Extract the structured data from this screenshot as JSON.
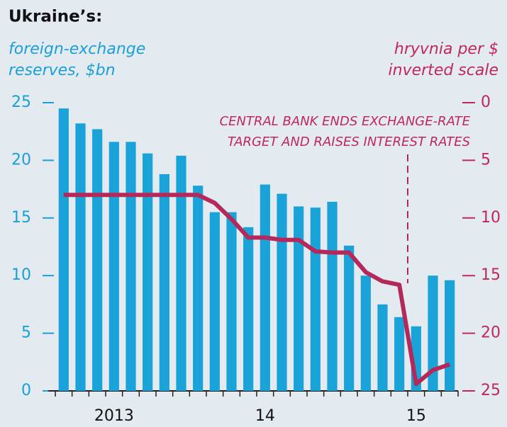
{
  "chart_data": {
    "type": "bar-line",
    "title": "Ukraine’s:",
    "y_label": [
      "foreign-exchange",
      "reserves, $bn"
    ],
    "y2_label": [
      "hryvnia per $",
      "inverted scale"
    ],
    "annotation": [
      "CENTRAL BANK ENDS EXCHANGE-RATE",
      "TARGET AND RAISES INTEREST RATES"
    ],
    "categories": [
      null,
      null,
      null,
      "2013",
      null,
      null,
      null,
      null,
      null,
      null,
      null,
      null,
      "14",
      null,
      null,
      null,
      null,
      null,
      null,
      null,
      null,
      "15",
      null,
      null
    ],
    "series": [
      {
        "name": "foreign-exchange reserves",
        "color": "#1aa3d9",
        "type": "bar",
        "values": [
          24.5,
          23.2,
          22.7,
          21.6,
          21.6,
          20.6,
          18.8,
          20.4,
          17.8,
          15.5,
          15.5,
          14.2,
          17.9,
          17.1,
          16.0,
          15.9,
          16.4,
          12.6,
          10.0,
          7.5,
          6.4,
          5.6,
          10.0,
          9.6
        ]
      },
      {
        "name": "hryvnia per $",
        "color": "#b5285a",
        "type": "line",
        "axis": "y2",
        "values": [
          8.0,
          8.0,
          8.0,
          8.0,
          8.0,
          8.0,
          8.0,
          8.0,
          8.0,
          8.7,
          10.1,
          11.7,
          11.7,
          11.9,
          11.9,
          12.9,
          13.0,
          13.0,
          14.7,
          15.5,
          15.8,
          24.4,
          23.2,
          22.7
        ]
      }
    ],
    "ylim": [
      0,
      25
    ],
    "yticks": [
      0,
      5,
      10,
      15,
      20,
      25
    ],
    "y2lim": [
      0,
      25
    ],
    "y2ticks": [
      0,
      5,
      10,
      15,
      20,
      25
    ],
    "y2_inverted": true,
    "event_index": 20.5
  }
}
